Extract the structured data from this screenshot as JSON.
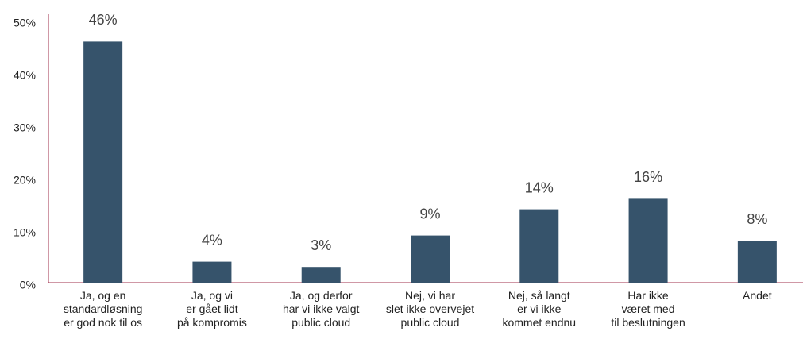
{
  "chart_data": {
    "type": "bar",
    "categories": [
      "Ja, og en\nstandardløsning\ner god nok til os",
      "Ja, og vi\ner gået lidt\npå kompromis",
      "Ja, og derfor\nhar vi ikke valgt\npublic cloud",
      "Nej, vi har\nslet ikke overvejet\npublic cloud",
      "Nej, så langt\ner vi ikke\nkommet endnu",
      "Har ikke\nværet med\ntil beslutningen",
      "Andet"
    ],
    "values": [
      46,
      4,
      3,
      9,
      14,
      16,
      8
    ],
    "value_labels": [
      "46%",
      "4%",
      "3%",
      "9%",
      "14%",
      "16%",
      "8%"
    ],
    "color": "#36536b",
    "ylim": [
      0,
      50
    ],
    "yticks": [
      {
        "value": 0,
        "label": "0%"
      },
      {
        "value": 10,
        "label": "10%"
      },
      {
        "value": 20,
        "label": "20%"
      },
      {
        "value": 30,
        "label": "30%"
      },
      {
        "value": 40,
        "label": "40%"
      },
      {
        "value": 50,
        "label": "50%"
      }
    ],
    "grid": false
  }
}
